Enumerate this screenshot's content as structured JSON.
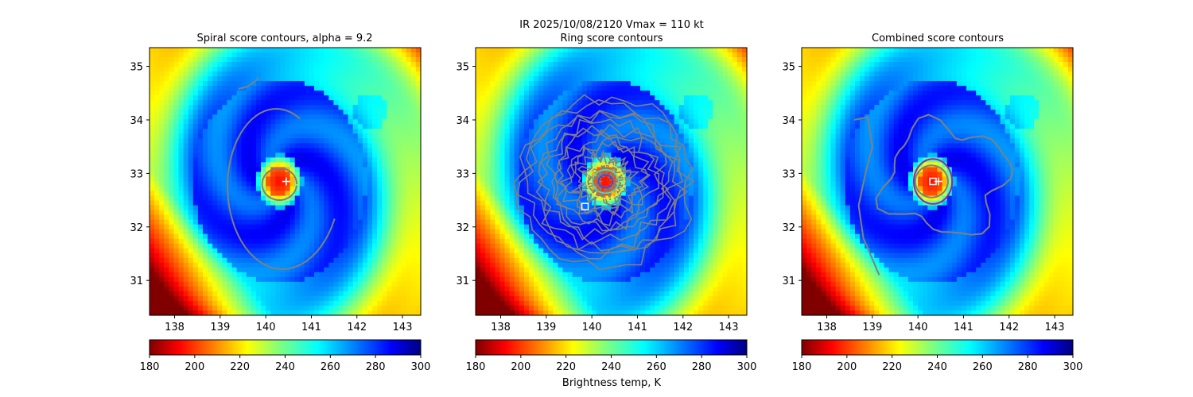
{
  "suptitle": "IR  2025/10/08/2120    Vmax = 110 kt",
  "colorbar_label": "Brightness temp, K",
  "chart_data": [
    {
      "type": "heatmap",
      "title": "Spiral score contours, alpha =  9.2",
      "xlim": [
        137.45,
        143.4
      ],
      "ylim": [
        30.35,
        35.35
      ],
      "x_ticks": [
        "138",
        "139",
        "140",
        "141",
        "142",
        "143"
      ],
      "y_ticks": [
        "31",
        "32",
        "33",
        "34",
        "35"
      ],
      "center_lon": 140.3,
      "center_lat": 32.85,
      "contours": "spiral",
      "markers": [
        {
          "kind": "plus",
          "lon": 140.45,
          "lat": 32.85,
          "color": "#ffffff"
        }
      ]
    },
    {
      "type": "heatmap",
      "title": "Ring score contours",
      "xlim": [
        137.45,
        143.4
      ],
      "ylim": [
        30.35,
        35.35
      ],
      "x_ticks": [
        "138",
        "139",
        "140",
        "141",
        "142",
        "143"
      ],
      "y_ticks": [
        "31",
        "32",
        "33",
        "34",
        "35"
      ],
      "center_lon": 140.3,
      "center_lat": 32.85,
      "contours": "ring",
      "markers": [
        {
          "kind": "square",
          "lon": 139.85,
          "lat": 32.38,
          "color": "#ffffff"
        }
      ]
    },
    {
      "type": "heatmap",
      "title": "Combined score contours",
      "xlim": [
        137.45,
        143.4
      ],
      "ylim": [
        30.35,
        35.35
      ],
      "x_ticks": [
        "138",
        "139",
        "140",
        "141",
        "142",
        "143"
      ],
      "y_ticks": [
        "31",
        "32",
        "33",
        "34",
        "35"
      ],
      "center_lon": 140.3,
      "center_lat": 32.85,
      "contours": "combined",
      "markers": [
        {
          "kind": "square",
          "lon": 140.33,
          "lat": 32.85,
          "color": "#ffffff"
        },
        {
          "kind": "plus",
          "lon": 140.45,
          "lat": 32.85,
          "color": "#ffffff"
        },
        {
          "kind": "circle",
          "lon": 140.33,
          "lat": 32.85,
          "radius_deg": 0.42,
          "color": "#a020a0"
        }
      ]
    }
  ],
  "colorbar": {
    "vmin": 180,
    "vmax": 300,
    "ticks": [
      "180",
      "200",
      "220",
      "240",
      "260",
      "280",
      "300"
    ],
    "colormap": "jet_r"
  },
  "colors": {
    "contour": "#808080",
    "marker": "#ffffff",
    "circle": "#a020a0"
  }
}
